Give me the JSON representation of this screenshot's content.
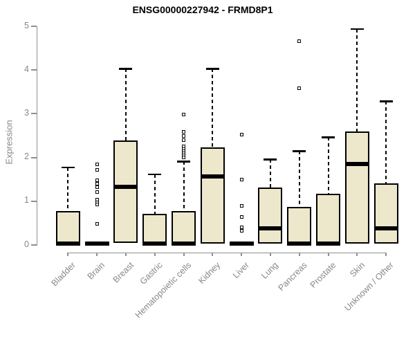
{
  "chart_data": {
    "type": "boxplot",
    "title": "ENSG00000227942 - FRMD8P1",
    "ylabel": "Expression",
    "xlabel": "",
    "ylim": [
      0,
      5
    ],
    "y_ticks": [
      0,
      1,
      2,
      3,
      4,
      5
    ],
    "grid": false,
    "legend": "none",
    "categories": [
      "Bladder",
      "Brain",
      "Breast",
      "Gastric",
      "Hematopoietic cells",
      "Kidney",
      "Liver",
      "Lung",
      "Pancreas",
      "Prostate",
      "Skin",
      "Unknown / Other"
    ],
    "series": [
      {
        "name": "Bladder",
        "whisker_low": 0,
        "q1": 0,
        "median": 0.02,
        "q3": 0.76,
        "whisker_high": 1.77,
        "outliers": []
      },
      {
        "name": "Brain",
        "whisker_low": 0,
        "q1": 0,
        "median": 0.02,
        "q3": 0,
        "whisker_high": 0,
        "outliers": [
          1.84,
          1.71,
          1.47,
          1.4,
          1.32,
          1.21,
          1.03,
          0.97,
          0.91,
          0.47
        ]
      },
      {
        "name": "Breast",
        "whisker_low": 0.04,
        "q1": 0.04,
        "median": 1.32,
        "q3": 2.38,
        "whisker_high": 4.02,
        "outliers": []
      },
      {
        "name": "Gastric",
        "whisker_low": 0,
        "q1": 0,
        "median": 0.02,
        "q3": 0.7,
        "whisker_high": 1.61,
        "outliers": []
      },
      {
        "name": "Hematopoietic cells",
        "whisker_low": 0,
        "q1": 0,
        "median": 0.02,
        "q3": 0.76,
        "whisker_high": 1.9,
        "outliers": [
          2.98,
          2.58,
          2.49,
          2.39,
          2.24,
          2.19,
          2.14,
          2.09,
          2.04,
          1.99
        ]
      },
      {
        "name": "Kidney",
        "whisker_low": 0.02,
        "q1": 0.02,
        "median": 1.56,
        "q3": 2.22,
        "whisker_high": 4.02,
        "outliers": []
      },
      {
        "name": "Liver",
        "whisker_low": 0,
        "q1": 0,
        "median": 0.02,
        "q3": 0,
        "whisker_high": 0,
        "outliers": [
          2.51,
          1.49,
          0.89,
          0.64,
          0.4,
          0.32
        ]
      },
      {
        "name": "Lung",
        "whisker_low": 0.02,
        "q1": 0.02,
        "median": 0.37,
        "q3": 1.31,
        "whisker_high": 1.95,
        "outliers": []
      },
      {
        "name": "Pancreas",
        "whisker_low": 0,
        "q1": 0,
        "median": 0.02,
        "q3": 0.87,
        "whisker_high": 2.14,
        "outliers": [
          4.65,
          3.57
        ]
      },
      {
        "name": "Prostate",
        "whisker_low": 0,
        "q1": 0,
        "median": 0.02,
        "q3": 1.17,
        "whisker_high": 2.46,
        "outliers": []
      },
      {
        "name": "Skin",
        "whisker_low": 0.02,
        "q1": 0.02,
        "median": 1.85,
        "q3": 2.59,
        "whisker_high": 4.93,
        "outliers": []
      },
      {
        "name": "Unknown / Other",
        "whisker_low": 0.02,
        "q1": 0.02,
        "median": 0.37,
        "q3": 1.4,
        "whisker_high": 3.28,
        "outliers": []
      }
    ],
    "colors": {
      "box_fill": "#EDE7CC",
      "box_border": "#000000",
      "median": "#000000",
      "whisker": "#000000",
      "axis": "#8f8f8f",
      "tick_label": "#878787",
      "title": "#000000",
      "background": "#ffffff"
    }
  }
}
